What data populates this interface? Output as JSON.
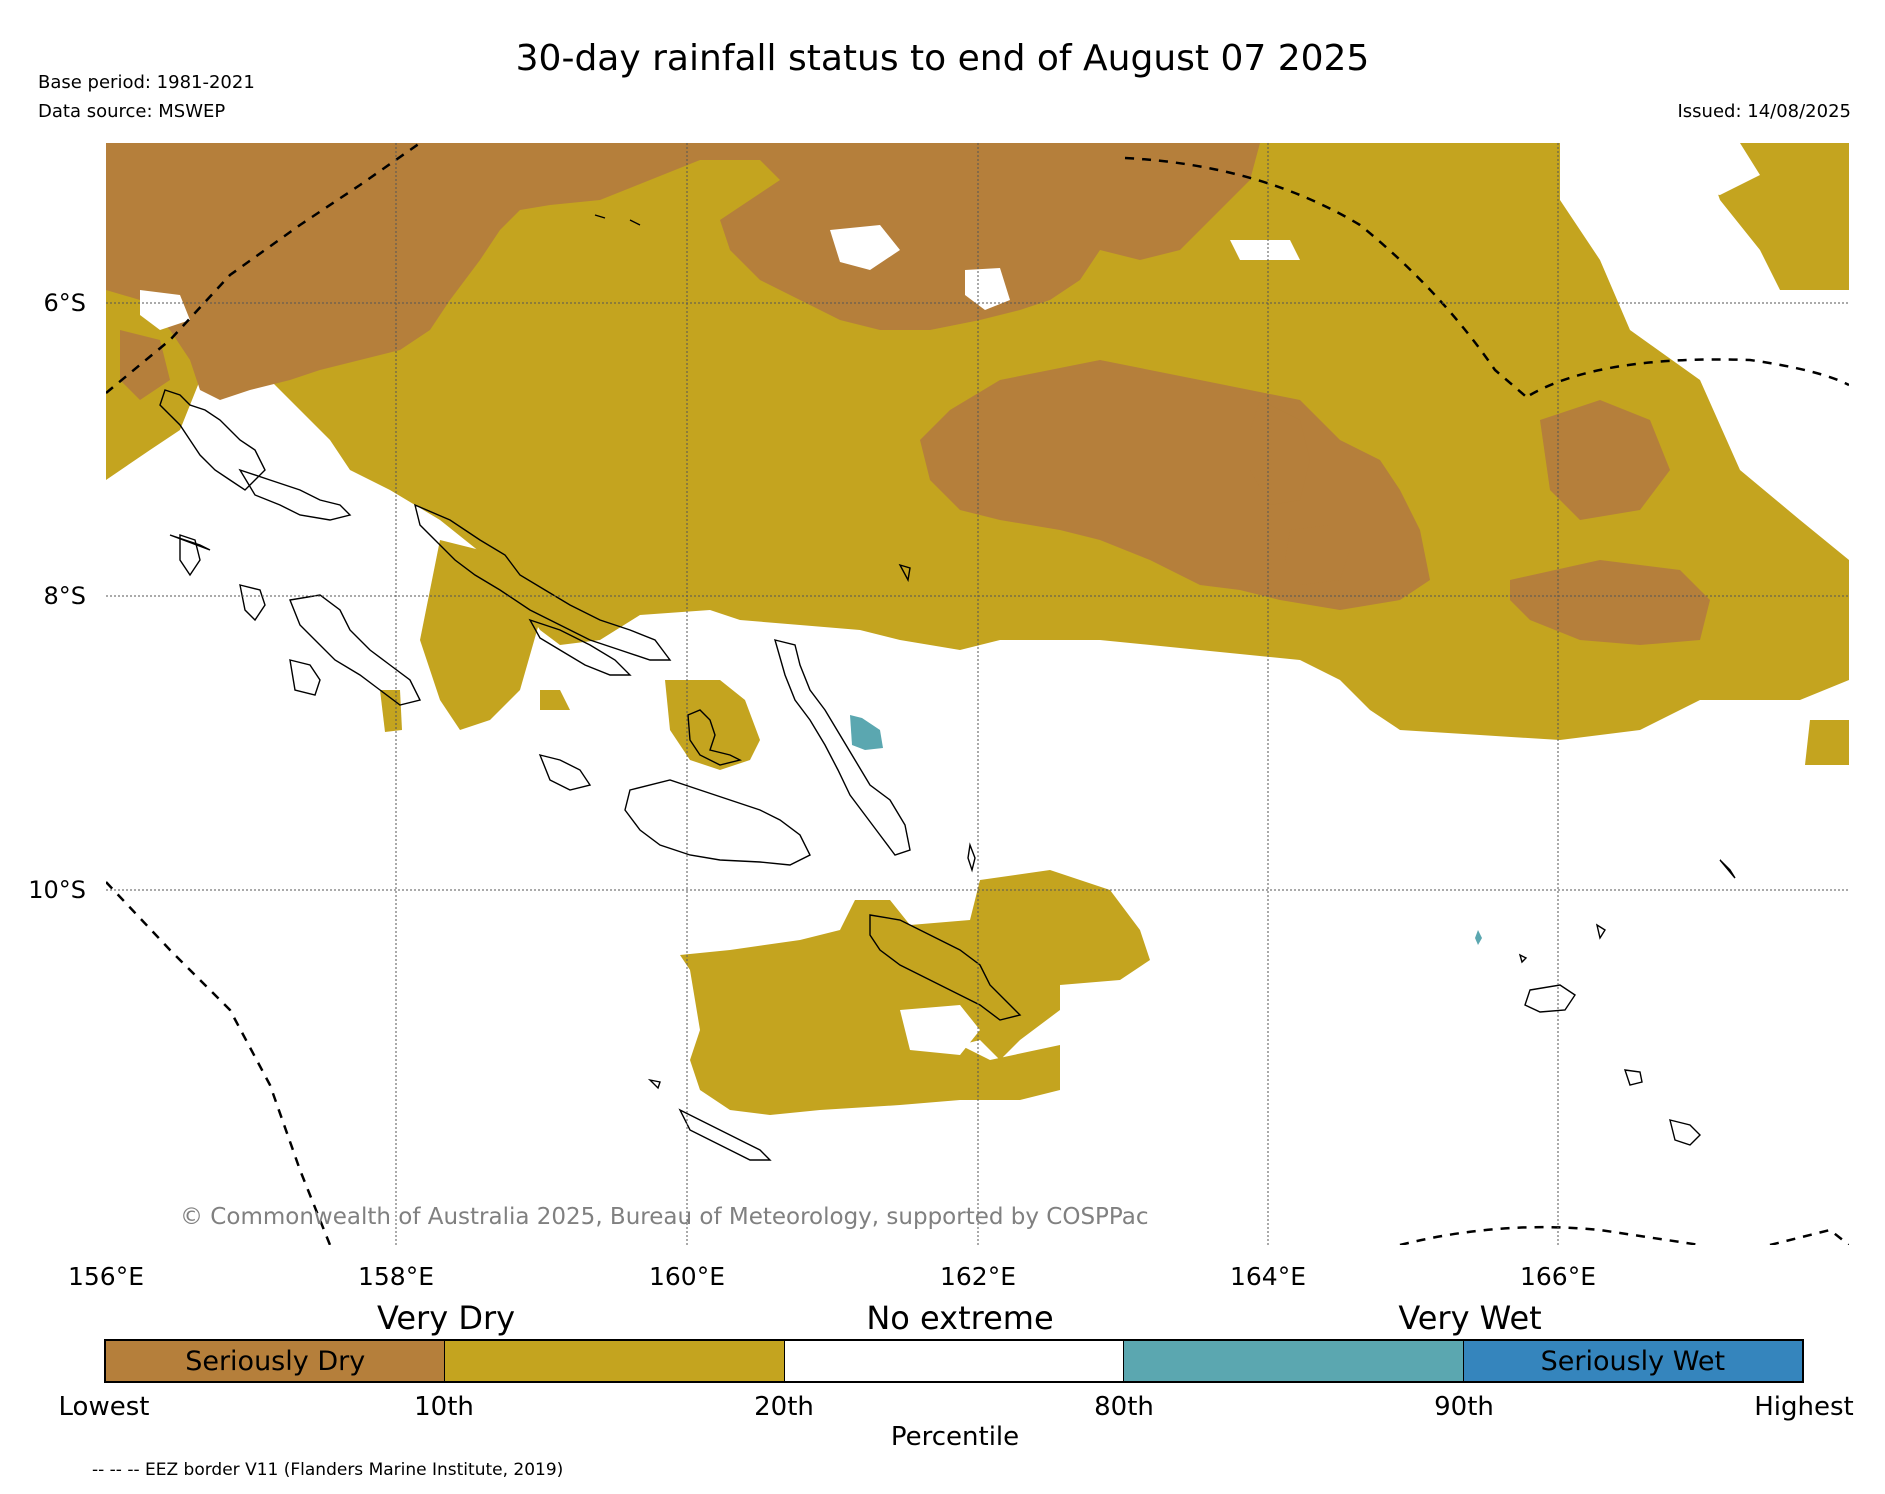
{
  "title": "30-day rainfall status to end of August 07 2025",
  "base_period": "Base period: 1981-2021",
  "data_source": "Data source: MSWEP",
  "issued": "Issued: 14/08/2025",
  "copyright": "© Commonwealth of Australia 2025, Bureau of Meteorology, supported by COSPPac",
  "latitude_labels": [
    "6°S",
    "8°S",
    "10°S"
  ],
  "longitude_labels": [
    "156°E",
    "158°E",
    "160°E",
    "162°E",
    "164°E",
    "166°E"
  ],
  "categories": {
    "very_dry": "Very Dry",
    "no_extreme": "No extreme",
    "very_wet": "Very Wet"
  },
  "legend": {
    "segments": [
      {
        "label": "Seriously Dry",
        "color": "#b57f3b"
      },
      {
        "label": "",
        "color": "#c4a41f"
      },
      {
        "label": "",
        "color": "#ffffff"
      },
      {
        "label": "",
        "color": "#5ba7b0"
      },
      {
        "label": "Seriously Wet",
        "color": "#3585bd"
      }
    ],
    "ticks": [
      "Lowest",
      "10th",
      "20th",
      "80th",
      "90th",
      "Highest"
    ],
    "axis_label": "Percentile"
  },
  "eez_note": "-- -- -- EEZ border V11 (Flanders Marine Institute, 2019)",
  "colors": {
    "seriously_dry": "#b57f3b",
    "very_dry": "#c4a41f",
    "very_wet": "#5ba7b0",
    "seriously_wet": "#3585bd",
    "gridline": "#555555",
    "copyright_text": "#808080"
  }
}
